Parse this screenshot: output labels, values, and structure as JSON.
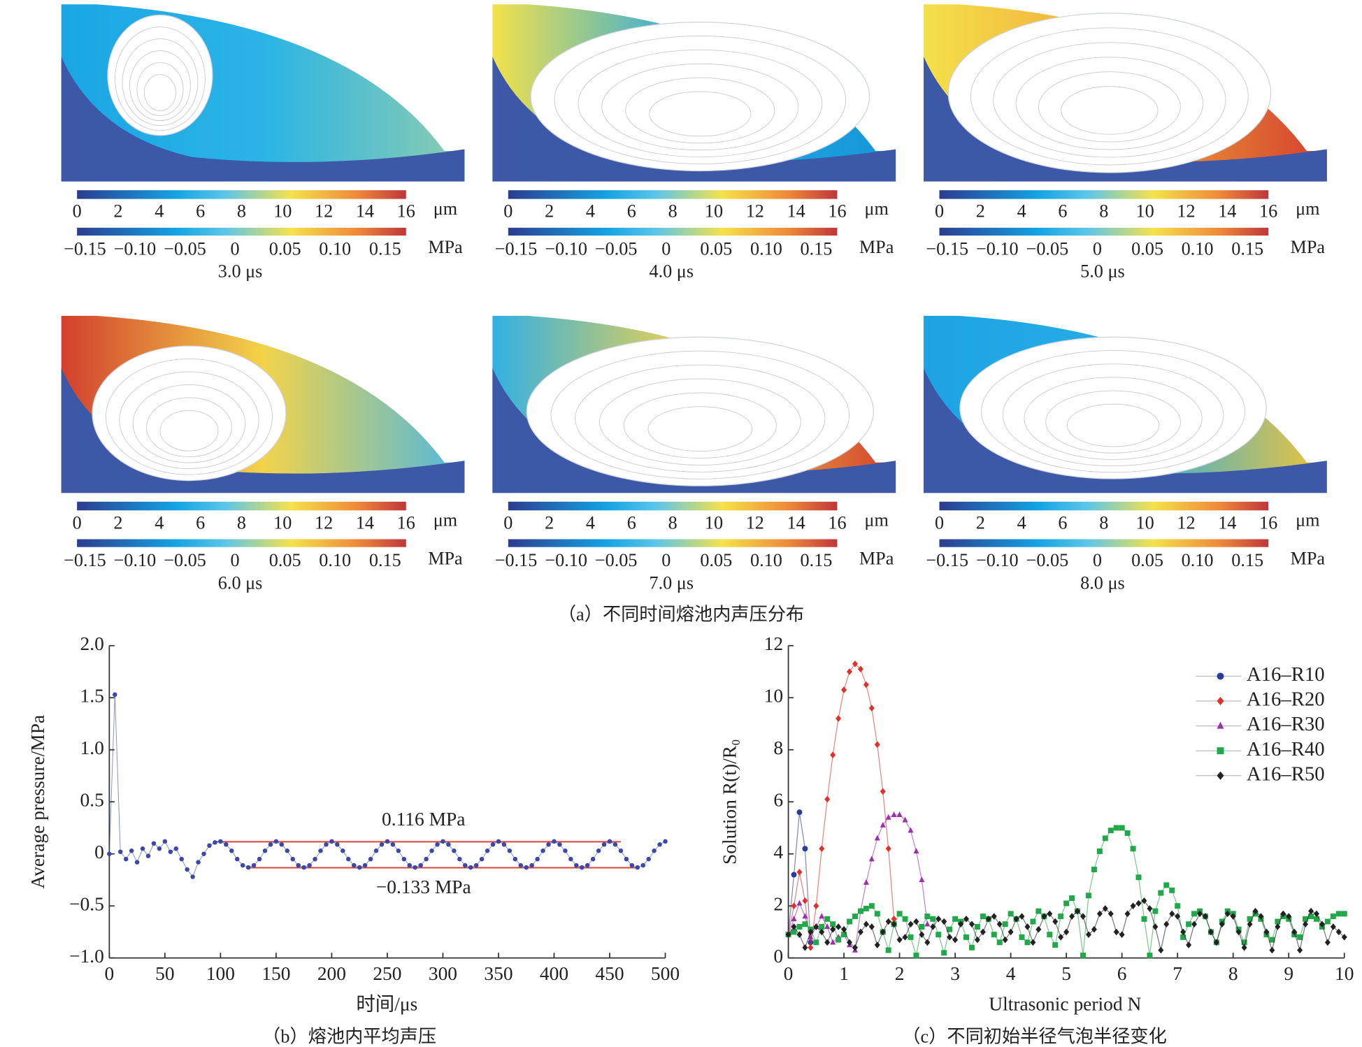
{
  "figure_a": {
    "caption": "（a）不同时间熔池内声压分布",
    "length_unit": "μm",
    "length_range": [
      0,
      16
    ],
    "length_ticks": [
      0,
      2,
      4,
      6,
      8,
      10,
      12,
      14,
      16
    ],
    "pressure_unit": "MPa",
    "pressure_range": [
      -0.15,
      0.15
    ],
    "pressure_ticks": [
      {
        "value": -0.15,
        "label": "−0.15"
      },
      {
        "value": -0.1,
        "label": "−0.10"
      },
      {
        "value": -0.05,
        "label": "−0.05"
      },
      0,
      0.05,
      {
        "value": 0.1,
        "label": "0.10"
      },
      0.15
    ],
    "panels": [
      {
        "label": "3.0 μs"
      },
      {
        "label": "4.0 μs"
      },
      {
        "label": "5.0 μs"
      },
      {
        "label": "6.0 μs"
      },
      {
        "label": "7.0 μs"
      },
      {
        "label": "8.0 μs"
      }
    ]
  },
  "chart_data": [
    {
      "type": "line",
      "markers": true,
      "caption": "（b）熔池内平均声压",
      "xlabel": "时间/μs",
      "ylabel": "Average pressure/MPa",
      "xlim": [
        0,
        500
      ],
      "xticks": [
        0,
        50,
        100,
        150,
        200,
        250,
        300,
        350,
        400,
        450,
        500
      ],
      "ylim": [
        -1,
        2
      ],
      "yticks": [
        {
          "value": -1,
          "label": "−1.0"
        },
        {
          "value": -0.5,
          "label": "−0.5"
        },
        0,
        0.5,
        {
          "value": 1,
          "label": "1.0"
        },
        1.5,
        {
          "value": 2,
          "label": "2.0"
        }
      ],
      "x": [
        0,
        5,
        10,
        15,
        20,
        25,
        30,
        35,
        40,
        45,
        50,
        55,
        60,
        65,
        70,
        75,
        80,
        85,
        90,
        95,
        100,
        105,
        110,
        115,
        120,
        125,
        130,
        135,
        140,
        145,
        150,
        155,
        160,
        165,
        170,
        175,
        180,
        185,
        190,
        195,
        200,
        205,
        210,
        215,
        220,
        225,
        230,
        235,
        240,
        245,
        250,
        255,
        260,
        265,
        270,
        275,
        280,
        285,
        290,
        295,
        300,
        305,
        310,
        315,
        320,
        325,
        330,
        335,
        340,
        345,
        350,
        355,
        360,
        365,
        370,
        375,
        380,
        385,
        390,
        395,
        400,
        405,
        410,
        415,
        420,
        425,
        430,
        435,
        440,
        445,
        450,
        455,
        460,
        465,
        470,
        475,
        480,
        485,
        490,
        495,
        500
      ],
      "series": [
        {
          "color": "#3b48a8",
          "values": [
            0,
            1.53,
            0.02,
            -0.05,
            0.03,
            -0.08,
            0.05,
            -0.02,
            0.1,
            0.05,
            0.12,
            0.02,
            0.05,
            -0.05,
            -0.15,
            -0.22,
            -0.08,
            0,
            0.08,
            0.11,
            0.12,
            0.09,
            0.03,
            -0.05,
            -0.11,
            -0.13,
            -0.11,
            -0.05,
            0.03,
            0.09,
            0.12,
            0.09,
            0.03,
            -0.05,
            -0.11,
            -0.13,
            -0.11,
            -0.05,
            0.03,
            0.09,
            0.12,
            0.09,
            0.03,
            -0.05,
            -0.11,
            -0.13,
            -0.11,
            -0.05,
            0.03,
            0.09,
            0.12,
            0.09,
            0.03,
            -0.05,
            -0.11,
            -0.13,
            -0.11,
            -0.05,
            0.03,
            0.09,
            0.12,
            0.09,
            0.03,
            -0.05,
            -0.11,
            -0.13,
            -0.11,
            -0.05,
            0.03,
            0.09,
            0.12,
            0.09,
            0.03,
            -0.05,
            -0.11,
            -0.13,
            -0.11,
            -0.05,
            0.03,
            0.09,
            0.12,
            0.09,
            0.03,
            -0.05,
            -0.11,
            -0.13,
            -0.11,
            -0.05,
            0.03,
            0.09,
            0.12,
            0.09,
            0.03,
            -0.05,
            -0.11,
            -0.13,
            -0.11,
            -0.05,
            0.03,
            0.09,
            0.12
          ]
        }
      ],
      "reference_lines": [
        {
          "value": 0.116,
          "label": "0.116 MPa",
          "x": [
            95,
            460
          ],
          "color": "#d9443a"
        },
        {
          "value": -0.133,
          "label": "−0.133 MPa",
          "x": [
            125,
            475
          ],
          "color": "#d9443a"
        }
      ]
    },
    {
      "type": "line",
      "markers": true,
      "caption": "（c）不同初始半径气泡半径变化",
      "xlabel": "Ultrasonic period N",
      "ylabel": "Solution R(t)/R₀",
      "legend": "upper right",
      "xlim": [
        0,
        10
      ],
      "xticks": [
        0,
        1,
        2,
        3,
        4,
        5,
        6,
        7,
        8,
        9,
        10
      ],
      "ylim": [
        0,
        12
      ],
      "yticks": [
        0,
        2,
        4,
        6,
        8,
        10,
        12
      ],
      "x": [
        0,
        0.1,
        0.2,
        0.3,
        0.4,
        0.5,
        0.6,
        0.7,
        0.8,
        0.9,
        1,
        1.1,
        1.2,
        1.3,
        1.4,
        1.5,
        1.6,
        1.7,
        1.8,
        1.9,
        2,
        2.1,
        2.2,
        2.3,
        2.4,
        2.5,
        2.6,
        2.7,
        2.8,
        2.9,
        3,
        3.1,
        3.2,
        3.3,
        3.4,
        3.5,
        3.6,
        3.7,
        3.8,
        3.9,
        4,
        4.1,
        4.2,
        4.3,
        4.4,
        4.5,
        4.6,
        4.7,
        4.8,
        4.9,
        5,
        5.1,
        5.2,
        5.3,
        5.4,
        5.5,
        5.6,
        5.7,
        5.8,
        5.9,
        6,
        6.1,
        6.2,
        6.3,
        6.4,
        6.5,
        6.6,
        6.7,
        6.8,
        6.9,
        7,
        7.1,
        7.2,
        7.3,
        7.4,
        7.5,
        7.6,
        7.7,
        7.8,
        7.9,
        8,
        8.1,
        8.2,
        8.3,
        8.4,
        8.5,
        8.6,
        8.7,
        8.8,
        8.9,
        9,
        9.1,
        9.2,
        9.3,
        9.4,
        9.5,
        9.6,
        9.7,
        9.8,
        9.9,
        10
      ],
      "series": [
        {
          "name": "A16–R10",
          "color": "#2c3a9e",
          "marker": "circle",
          "values": [
            0.9,
            3.2,
            5.6,
            4.2,
            0.6,
            null,
            null,
            null,
            null,
            null,
            null,
            null,
            null,
            null,
            null,
            null,
            null,
            null,
            null,
            null,
            null,
            null,
            null,
            null,
            null,
            null,
            null,
            null,
            null,
            null,
            null,
            null,
            null,
            null,
            null,
            null,
            null,
            null,
            null,
            null,
            null,
            null,
            null,
            null,
            null,
            null,
            null,
            null,
            null,
            null,
            null,
            null,
            null,
            null,
            null,
            null,
            null,
            null,
            null,
            null,
            null,
            null,
            null,
            null,
            null,
            null,
            null,
            null,
            null,
            null,
            null,
            null,
            null,
            null,
            null,
            null,
            null,
            null,
            null,
            null,
            null,
            null,
            null,
            null,
            null,
            null,
            null,
            null,
            null,
            null,
            null,
            null,
            null,
            null,
            null,
            null,
            null,
            null,
            null,
            null,
            null
          ]
        },
        {
          "name": "A16–R20",
          "color": "#e0302a",
          "marker": "diamond",
          "values": [
            0.9,
            2,
            3.3,
            2.2,
            0.4,
            2,
            4.2,
            6.1,
            7.8,
            9.2,
            10.3,
            11,
            11.3,
            11.1,
            10.5,
            9.6,
            8.2,
            6.4,
            4.2,
            1.5,
            null,
            null,
            null,
            null,
            null,
            null,
            null,
            null,
            null,
            null,
            null,
            null,
            null,
            null,
            null,
            null,
            null,
            null,
            null,
            null,
            null,
            null,
            null,
            null,
            null,
            null,
            null,
            null,
            null,
            null,
            null,
            null,
            null,
            null,
            null,
            null,
            null,
            null,
            null,
            null,
            null,
            null,
            null,
            null,
            null,
            null,
            null,
            null,
            null,
            null,
            null,
            null,
            null,
            null,
            null,
            null,
            null,
            null,
            null,
            null,
            null,
            null,
            null,
            null,
            null,
            null,
            null,
            null,
            null,
            null,
            null,
            null,
            null,
            null,
            null,
            null,
            null,
            null,
            null,
            null,
            null
          ]
        },
        {
          "name": "A16–R30",
          "color": "#9b2fae",
          "marker": "triangle",
          "values": [
            0.9,
            1.5,
            2.1,
            1.6,
            0.8,
            1.2,
            1.6,
            1.2,
            0.6,
            0.8,
            0.9,
            0.5,
            0.3,
            1.8,
            2.9,
            3.8,
            4.6,
            5.1,
            5.4,
            5.5,
            5.5,
            5.3,
            4.9,
            4.1,
            3,
            1.3,
            null,
            null,
            null,
            null,
            null,
            null,
            null,
            null,
            null,
            null,
            null,
            null,
            null,
            null,
            null,
            null,
            null,
            null,
            null,
            null,
            null,
            null,
            null,
            null,
            null,
            null,
            null,
            null,
            null,
            null,
            null,
            null,
            null,
            null,
            null,
            null,
            null,
            null,
            null,
            null,
            null,
            null,
            null,
            null,
            null,
            null,
            null,
            null,
            null,
            null,
            null,
            null,
            null,
            null,
            null,
            null,
            null,
            null,
            null,
            null,
            null,
            null,
            null,
            null,
            null,
            null,
            null,
            null,
            null,
            null,
            null,
            null,
            null,
            null,
            null
          ]
        },
        {
          "name": "A16–R40",
          "color": "#22a84a",
          "marker": "square",
          "values": [
            0.9,
            1,
            1.2,
            1.3,
            1.1,
            0.6,
            1.2,
            1.5,
            1.3,
            0.7,
            0.9,
            1.4,
            1.6,
            1.8,
            1.9,
            2,
            1.7,
            1,
            0.3,
            1.3,
            1.7,
            1.5,
            0.8,
            0.1,
            1.2,
            1.6,
            1.5,
            0.9,
            0.2,
            1.1,
            1.5,
            1.4,
            0.8,
            0.4,
            1.2,
            1.6,
            1.5,
            0.9,
            0.6,
            1.3,
            1.7,
            1.5,
            0.8,
            0.6,
            1.4,
            1.8,
            1.6,
            0.9,
            0.5,
            1.6,
            2.1,
            2.3,
            1.8,
            0.1,
            2.4,
            3.4,
            4.1,
            4.6,
            4.9,
            5,
            5,
            4.8,
            4.2,
            3.1,
            1.5,
            0.1,
            1.8,
            2.5,
            2.8,
            2.6,
            2,
            0.8,
            1.3,
            1.7,
            1.8,
            1.6,
            1,
            0.6,
            1.4,
            1.8,
            1.7,
            1.1,
            0.6,
            1.5,
            1.7,
            1.5,
            0.9,
            0.7,
            1.4,
            1.6,
            1.5,
            0.9,
            0.8,
            1.5,
            1.6,
            1.5,
            1.2,
            1.4,
            1.6,
            1.7,
            1.7
          ]
        },
        {
          "name": "A16–R50",
          "color": "#222222",
          "marker": "diamond",
          "values": [
            0.9,
            1.2,
            0.9,
            0.4,
            1,
            1.2,
            1,
            0.6,
            1.1,
            1.2,
            1.1,
            0.6,
            0.4,
            1,
            1.3,
            1.2,
            0.5,
            1,
            1.4,
            1.3,
            0.7,
            0.8,
            1.3,
            1.4,
            0.9,
            0.6,
            1.2,
            1.5,
            1.4,
            0.8,
            0.7,
            1.3,
            1.5,
            1.3,
            0.7,
            1,
            1.5,
            1.6,
            1.3,
            0.7,
            1,
            1.5,
            1.6,
            1.2,
            0.6,
            1.1,
            1.6,
            1.7,
            1.4,
            0.8,
            1,
            1.6,
            1.8,
            1.6,
            0.9,
            1.1,
            1.7,
            1.9,
            1.7,
            1,
            0.9,
            1.7,
            2,
            2.1,
            2.2,
            1.9,
            1.2,
            0.3,
            1.3,
            1.7,
            1.6,
            1,
            0.5,
            1.3,
            1.7,
            1.6,
            1,
            0.6,
            1.3,
            1.7,
            1.6,
            1,
            0.4,
            1.3,
            1.8,
            1.6,
            1,
            0.3,
            1.2,
            1.7,
            1.6,
            1,
            0.3,
            1.3,
            1.8,
            1.7,
            1.3,
            0.6,
            1.2,
            1,
            0.8
          ]
        }
      ]
    }
  ]
}
